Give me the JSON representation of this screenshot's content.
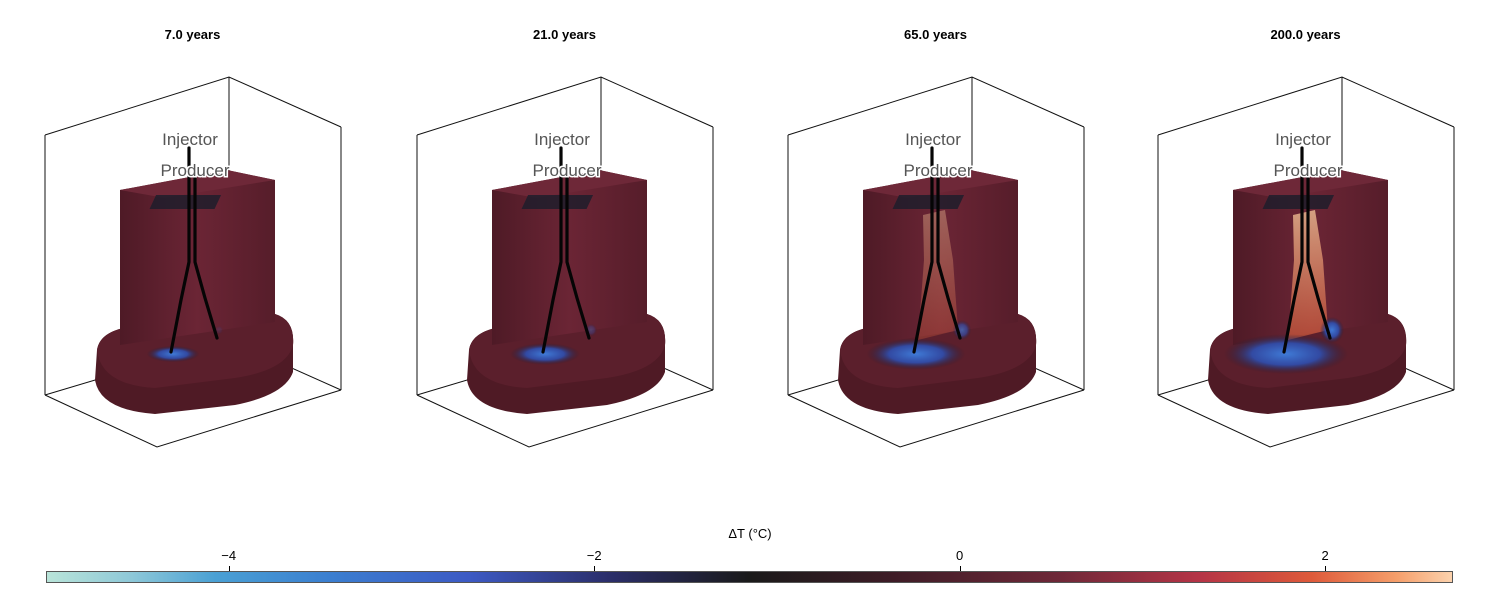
{
  "panels": [
    {
      "title": "7.0 years",
      "plume": 0.15
    },
    {
      "title": "21.0 years",
      "plume": 0.35
    },
    {
      "title": "65.0 years",
      "plume": 0.7
    },
    {
      "title": "200.0 years",
      "plume": 1.0
    }
  ],
  "wells": {
    "injector": "Injector",
    "producer": "Producer"
  },
  "colorbar": {
    "label": "ΔT (°C)",
    "range": [
      -5,
      2.7
    ],
    "ticks": [
      {
        "value": -4,
        "label": "−4"
      },
      {
        "value": -2,
        "label": "−2"
      },
      {
        "value": 0,
        "label": "0"
      },
      {
        "value": 2,
        "label": "2"
      }
    ]
  },
  "colors": {
    "body": "#5b1f2c",
    "body_light": "#6b2535",
    "cold": "#3f7ad6",
    "hot": "#f6c79a"
  }
}
